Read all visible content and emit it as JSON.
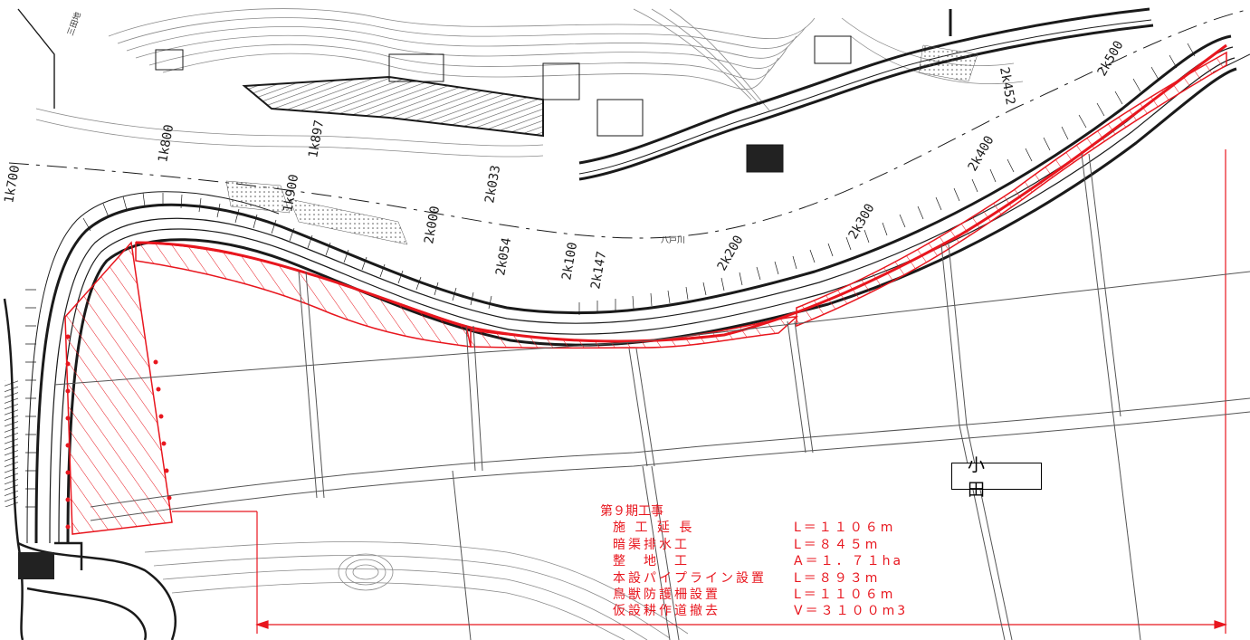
{
  "place_name": "小　田",
  "river_label": "八戸川",
  "road_label": "三田地",
  "colors": {
    "accent": "#e8161e",
    "linework": "#1a1a1a",
    "contour": "#8a8a8a"
  },
  "stations": {
    "s_1k700": "1k700",
    "s_1k800": "1k800",
    "s_1k897": "1k897",
    "s_1k900": "1k900",
    "s_2k000": "2k000",
    "s_2k033": "2k033",
    "s_2k054": "2k054",
    "s_2k100": "2k100",
    "s_2k147": "2k147",
    "s_2k200": "2k200",
    "s_2k300": "2k300",
    "s_2k400": "2k400",
    "s_2k452": "2k452",
    "s_2k500": "2k500"
  },
  "notes": {
    "heading": "第９期工事",
    "rows": [
      {
        "item": "施 工 延 長",
        "value": "L＝１１０６m"
      },
      {
        "item": "暗渠排水工",
        "value": "L＝８４５m"
      },
      {
        "item": "整　地　工",
        "value": "A＝１．７１ha"
      },
      {
        "item": "本設パイプライン設置",
        "value": "L＝８９３m"
      },
      {
        "item": "鳥獣防護柵設置",
        "value": "L＝１１０６m"
      },
      {
        "item": "仮設耕作道撤去",
        "value": "V＝３１００m3"
      }
    ]
  }
}
